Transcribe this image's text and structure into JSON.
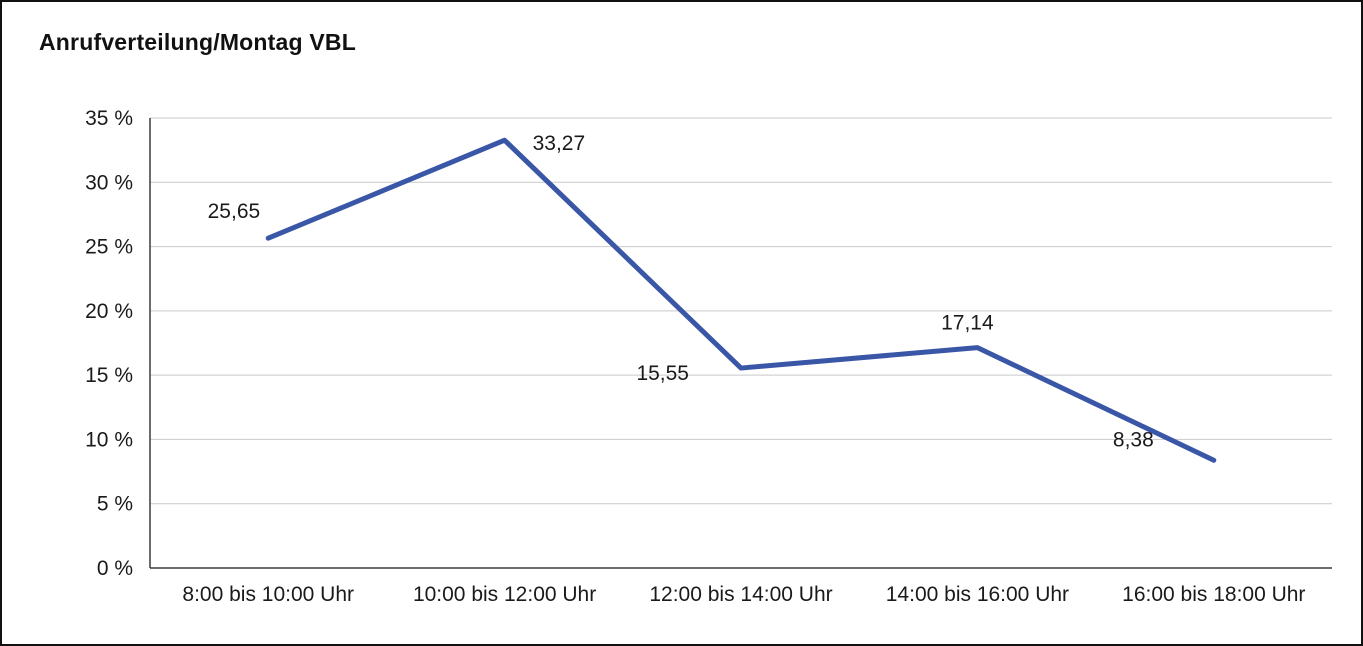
{
  "page": {
    "title": "Anrufverteilung/Montag VBL"
  },
  "colors": {
    "line": "#3a57a7",
    "grid": "#c9c9c9",
    "axis": "#3c3c3c",
    "text": "#1a1a1a"
  },
  "chart_data": {
    "type": "line",
    "title": "Anrufverteilung/Montag VBL",
    "categories": [
      "8:00 bis 10:00 Uhr",
      "10:00 bis 12:00 Uhr",
      "12:00 bis 14:00 Uhr",
      "14:00 bis 16:00 Uhr",
      "16:00 bis 18:00 Uhr"
    ],
    "values": [
      25.65,
      33.27,
      15.55,
      17.14,
      8.38
    ],
    "data_labels": [
      "25,65",
      "33,27",
      "15,55",
      "17,14",
      "8,38"
    ],
    "y_ticks": [
      "0 %",
      "5 %",
      "10 %",
      "15 %",
      "20 %",
      "25 %",
      "30 %",
      "35 %"
    ],
    "ylim": [
      0,
      35
    ],
    "y_tick_step": 5,
    "grid": true,
    "legend": "none",
    "xlabel": "",
    "ylabel": ""
  }
}
